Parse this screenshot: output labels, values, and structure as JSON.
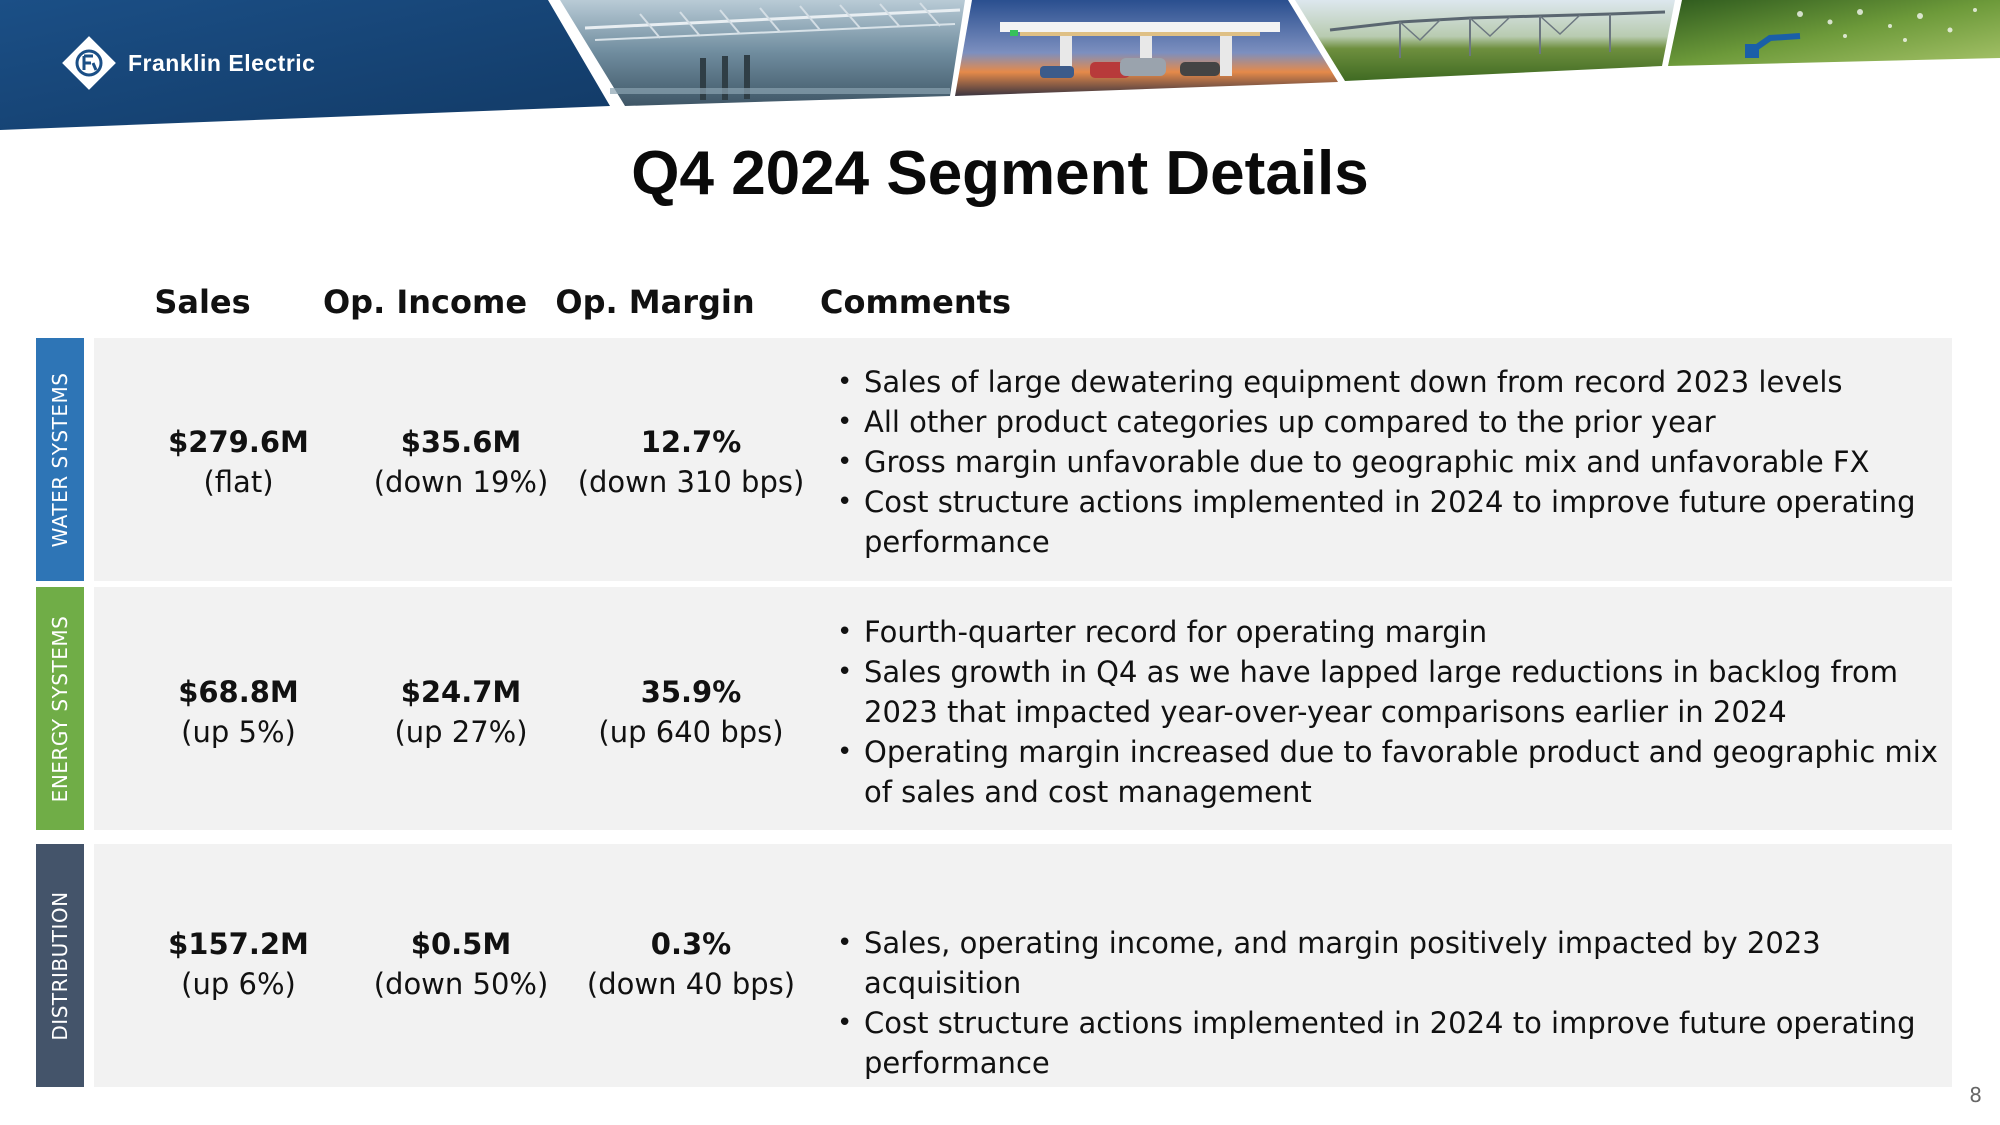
{
  "header": {
    "brand_name": "Franklin Electric",
    "photos": [
      "water-treatment-photo",
      "fuel-station-photo",
      "irrigation-photo",
      "sprinkler-photo"
    ]
  },
  "title": "Q4 2024 Segment Details",
  "columns": {
    "sales": "Sales",
    "op_income": "Op. Income",
    "op_margin": "Op. Margin",
    "comments": "Comments"
  },
  "segments": [
    {
      "label": "WATER SYSTEMS",
      "color": "#2e75b6",
      "sales": "$279.6M",
      "sales_change": "(flat)",
      "op_income": "$35.6M",
      "op_income_change": "(down 19%)",
      "op_margin": "12.7%",
      "op_margin_change": "(down 310 bps)",
      "comments": [
        "Sales of large dewatering equipment down from record 2023 levels",
        "All other product categories up compared to the prior year",
        "Gross margin unfavorable due to geographic mix and unfavorable FX",
        "Cost structure actions implemented in 2024 to improve future operating performance"
      ]
    },
    {
      "label": "ENERGY SYSTEMS",
      "color": "#70ad47",
      "sales": "$68.8M",
      "sales_change": "(up 5%)",
      "op_income": "$24.7M",
      "op_income_change": "(up 27%)",
      "op_margin": "35.9%",
      "op_margin_change": "(up 640 bps)",
      "comments": [
        "Fourth-quarter record for operating margin",
        "Sales growth in Q4 as we have lapped large reductions in backlog from 2023 that impacted year-over-year comparisons earlier in 2024",
        "Operating margin increased due to favorable product and geographic mix of sales and cost management"
      ]
    },
    {
      "label": "DISTRIBUTION",
      "color": "#44546a",
      "sales": "$157.2M",
      "sales_change": "(up 6%)",
      "op_income": "$0.5M",
      "op_income_change": "(down 50%)",
      "op_margin": "0.3%",
      "op_margin_change": "(down 40 bps)",
      "comments": [
        "Sales, operating income, and margin positively impacted by 2023 acquisition",
        "Cost structure actions implemented in 2024 to improve future operating performance"
      ]
    }
  ],
  "page_number": "8"
}
